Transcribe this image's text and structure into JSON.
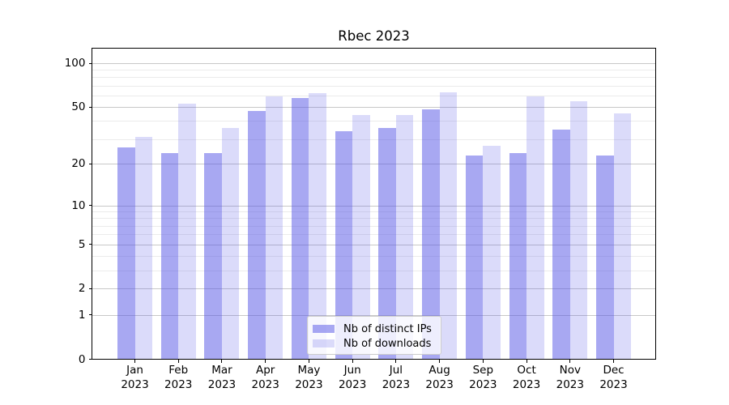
{
  "title": "Rbec 2023",
  "chart_data": {
    "type": "bar",
    "title": "Rbec 2023",
    "y_scale": "log1p",
    "grid": "horizontal",
    "legend_position": "bottom-center",
    "categories": [
      "Jan",
      "Feb",
      "Mar",
      "Apr",
      "May",
      "Jun",
      "Jul",
      "Aug",
      "Sep",
      "Oct",
      "Nov",
      "Dec"
    ],
    "year": "2023",
    "series": [
      {
        "name": "Nb of distinct IPs",
        "color": "rgba(85,85,230,0.51)",
        "color_hex": "#a8a8f3",
        "values": [
          26,
          24,
          24,
          47,
          58,
          34,
          36,
          48,
          23,
          24,
          35,
          23
        ]
      },
      {
        "name": "Nb of downloads",
        "color": "rgba(85,85,230,0.21)",
        "color_hex": "#dbdbf9",
        "values": [
          31,
          53,
          36,
          59,
          62,
          44,
          44,
          63,
          27,
          59,
          55,
          45
        ]
      }
    ],
    "y_ticks": [
      0,
      1,
      2,
      5,
      10,
      20,
      50,
      100
    ],
    "y_minor_gridlines": [
      3,
      4,
      6,
      7,
      8,
      9,
      30,
      40,
      60,
      70,
      80,
      90
    ],
    "ylim": [
      0,
      125
    ]
  },
  "colors": {
    "background": "#ffffff",
    "axis": "#000000",
    "grid_major": "#c8c8c8",
    "grid_minor": "#ebebeb",
    "legend_border": "#cccccc",
    "text": "#000000"
  }
}
